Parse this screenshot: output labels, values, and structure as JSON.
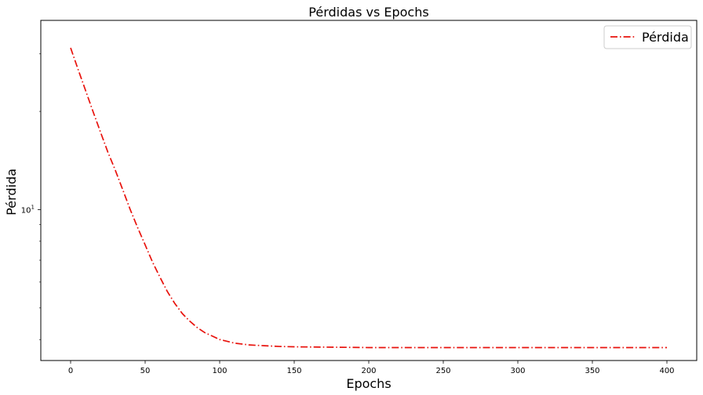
{
  "chart_data": {
    "type": "line",
    "title": "Pérdidas vs Epochs",
    "xlabel": "Epochs",
    "ylabel": "Pérdida",
    "xlim": [
      -20,
      420
    ],
    "ylim": [
      3.45,
      38
    ],
    "yscale": "log",
    "grid": false,
    "legend_position": "top-right",
    "x_ticks": [
      0,
      50,
      100,
      150,
      200,
      250,
      300,
      350,
      400
    ],
    "y_ticks": [
      {
        "value": 10,
        "label_base": "10",
        "label_exp": "1"
      }
    ],
    "series": [
      {
        "name": "Pérdida",
        "color": "#e8120c",
        "line_style": "dashdot",
        "x": [
          0,
          5,
          10,
          15,
          20,
          25,
          30,
          35,
          40,
          45,
          50,
          55,
          60,
          65,
          70,
          75,
          80,
          85,
          90,
          95,
          100,
          110,
          120,
          130,
          140,
          150,
          175,
          200,
          250,
          300,
          350,
          400
        ],
        "y": [
          31.3,
          26.9,
          23.2,
          20.0,
          17.3,
          15.0,
          13.2,
          11.5,
          10.0,
          8.8,
          7.8,
          6.9,
          6.2,
          5.6,
          5.15,
          4.8,
          4.55,
          4.35,
          4.2,
          4.1,
          4.0,
          3.9,
          3.85,
          3.83,
          3.81,
          3.8,
          3.79,
          3.78,
          3.78,
          3.78,
          3.78,
          3.78
        ]
      }
    ]
  }
}
